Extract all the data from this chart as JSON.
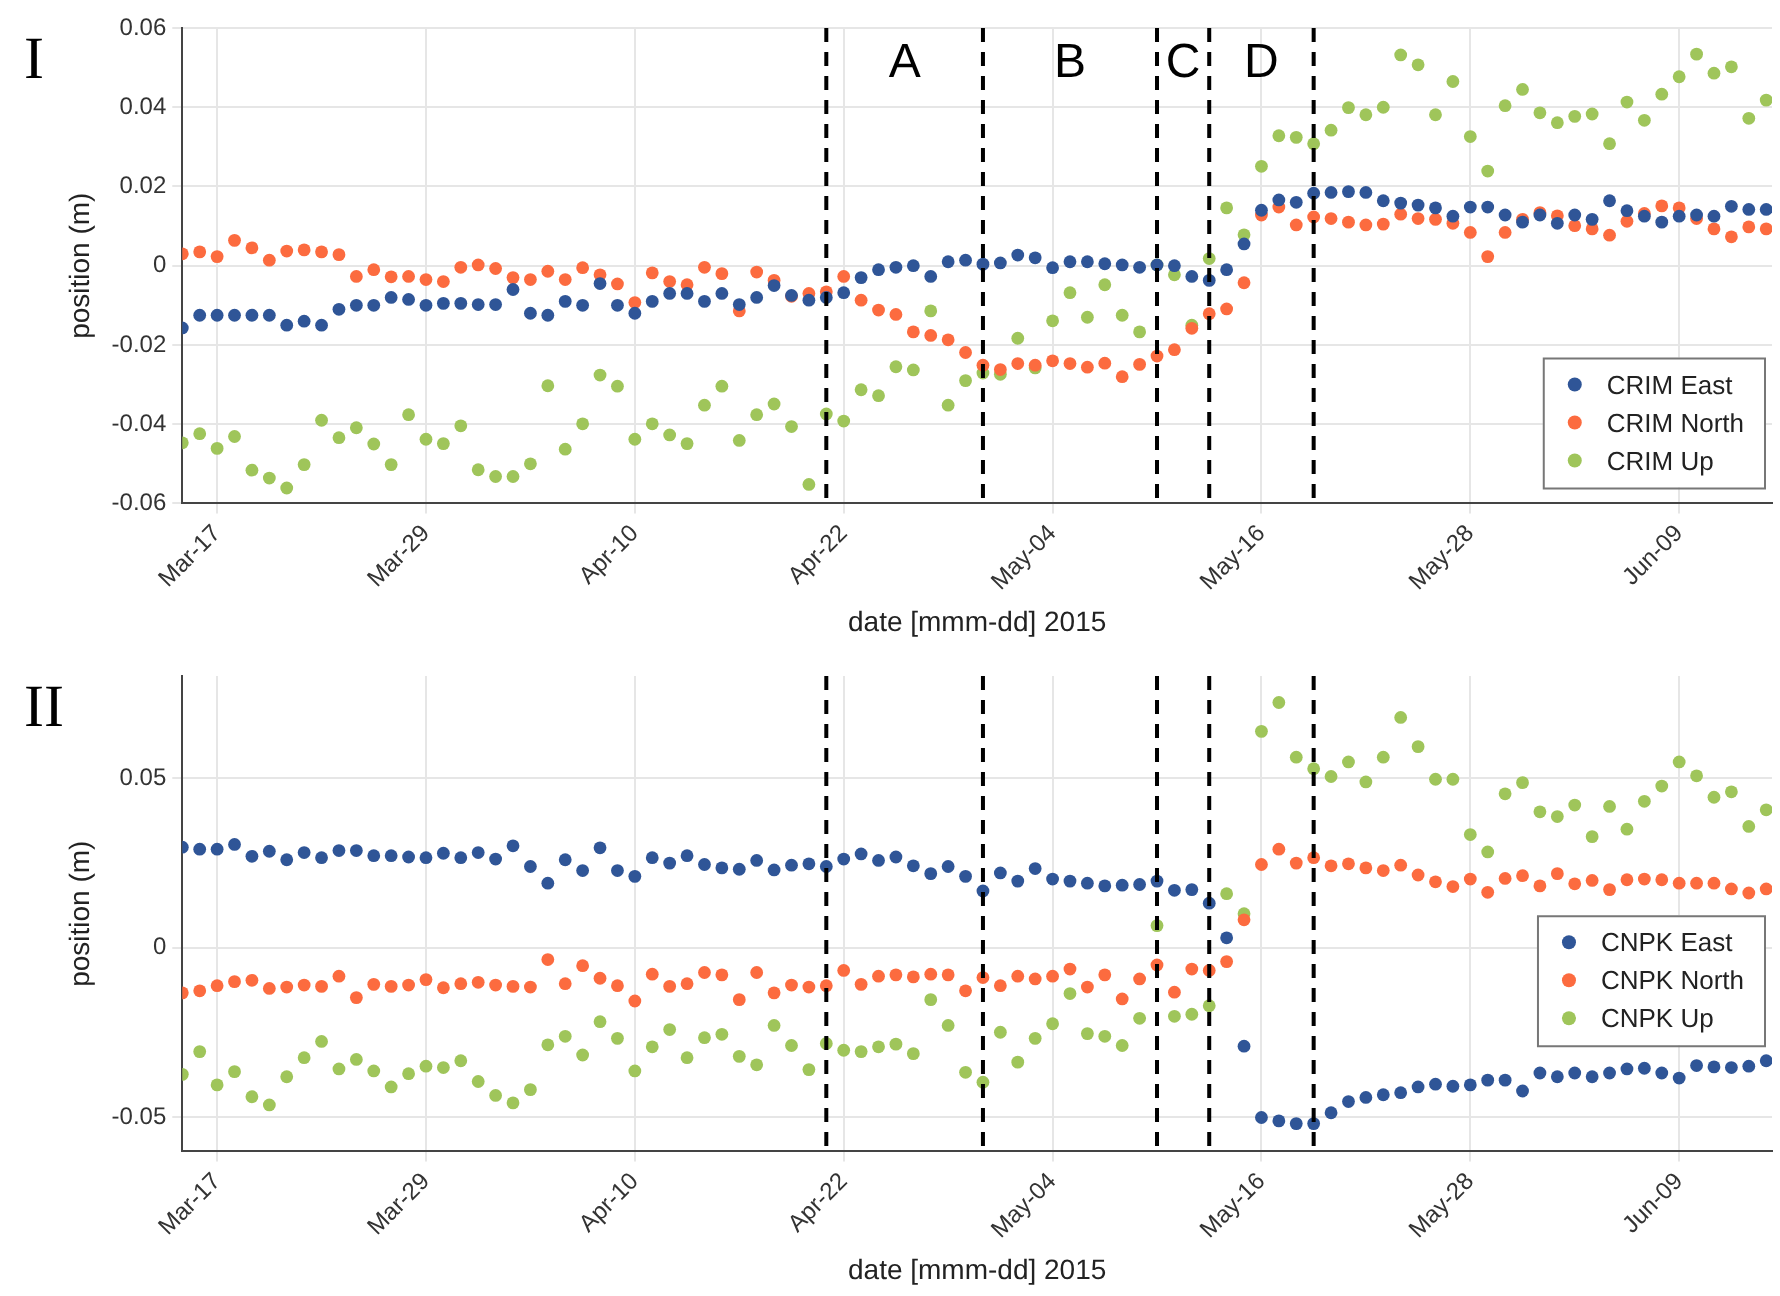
{
  "chart_data": [
    {
      "type": "scatter",
      "title": "I",
      "xlabel": "date [mmm-dd] 2015",
      "ylabel": "position (m)",
      "marker": "circle",
      "grid": true,
      "legend": "bottom right",
      "xlim": [
        "2015-03-15",
        "2015-06-14T08:00"
      ],
      "xticks": [
        {
          "value": "2015-03-17",
          "label": "Mar-17"
        },
        {
          "value": "2015-03-29",
          "label": "Mar-29"
        },
        {
          "value": "2015-04-10",
          "label": "Apr-10"
        },
        {
          "value": "2015-04-22",
          "label": "Apr-22"
        },
        {
          "value": "2015-05-04",
          "label": "May-04"
        },
        {
          "value": "2015-05-16",
          "label": "May-16"
        },
        {
          "value": "2015-05-28",
          "label": "May-28"
        },
        {
          "value": "2015-06-09",
          "label": "Jun-09"
        }
      ],
      "ylim": [
        -0.06,
        0.06
      ],
      "yticks": [
        -0.06,
        -0.04,
        -0.02,
        0,
        0.02,
        0.04,
        0.06
      ],
      "ref_lines": [
        {
          "axis": "x",
          "value": "2015-04-21",
          "color": "#000000",
          "line_style": "dashed"
        },
        {
          "axis": "x",
          "value": "2015-04-30",
          "color": "#000000",
          "line_style": "dashed"
        },
        {
          "axis": "x",
          "value": "2015-05-10",
          "color": "#000000",
          "line_style": "dashed"
        },
        {
          "axis": "x",
          "value": "2015-05-13",
          "color": "#000000",
          "line_style": "dashed"
        },
        {
          "axis": "x",
          "value": "2015-05-19",
          "color": "#000000",
          "line_style": "dashed"
        }
      ],
      "annotations": [
        "A",
        "B",
        "C",
        "D"
      ],
      "x": [
        "2015-03-15",
        "2015-03-16",
        "2015-03-17",
        "2015-03-18",
        "2015-03-19",
        "2015-03-20",
        "2015-03-21",
        "2015-03-22",
        "2015-03-23",
        "2015-03-24",
        "2015-03-25",
        "2015-03-26",
        "2015-03-27",
        "2015-03-28",
        "2015-03-29",
        "2015-03-30",
        "2015-03-31",
        "2015-04-01",
        "2015-04-02",
        "2015-04-03",
        "2015-04-04",
        "2015-04-05",
        "2015-04-06",
        "2015-04-07",
        "2015-04-08",
        "2015-04-09",
        "2015-04-10",
        "2015-04-11",
        "2015-04-12",
        "2015-04-13",
        "2015-04-14",
        "2015-04-15",
        "2015-04-16",
        "2015-04-17",
        "2015-04-18",
        "2015-04-19",
        "2015-04-20",
        "2015-04-21",
        "2015-04-22",
        "2015-04-23",
        "2015-04-24",
        "2015-04-25",
        "2015-04-26",
        "2015-04-27",
        "2015-04-28",
        "2015-04-29",
        "2015-04-30",
        "2015-05-01",
        "2015-05-02",
        "2015-05-03",
        "2015-05-04",
        "2015-05-05",
        "2015-05-06",
        "2015-05-07",
        "2015-05-08",
        "2015-05-09",
        "2015-05-10",
        "2015-05-11",
        "2015-05-12",
        "2015-05-13",
        "2015-05-14",
        "2015-05-15",
        "2015-05-16",
        "2015-05-17",
        "2015-05-18",
        "2015-05-19",
        "2015-05-20",
        "2015-05-21",
        "2015-05-22",
        "2015-05-23",
        "2015-05-24",
        "2015-05-25",
        "2015-05-26",
        "2015-05-27",
        "2015-05-28",
        "2015-05-29",
        "2015-05-30",
        "2015-05-31",
        "2015-06-01",
        "2015-06-02",
        "2015-06-03",
        "2015-06-04",
        "2015-06-05",
        "2015-06-06",
        "2015-06-07",
        "2015-06-08",
        "2015-06-09",
        "2015-06-10",
        "2015-06-11",
        "2015-06-12",
        "2015-06-13",
        "2015-06-14"
      ],
      "series": [
        {
          "name": "CRIM East",
          "color": "#2f5597",
          "values": [
            -0.0157,
            -0.0125,
            -0.0125,
            -0.0125,
            -0.0125,
            -0.0125,
            -0.015,
            -0.014,
            -0.015,
            -0.011,
            -0.01,
            -0.01,
            -0.008,
            -0.0085,
            -0.01,
            -0.0095,
            -0.0095,
            -0.0098,
            -0.0098,
            -0.006,
            -0.012,
            -0.0125,
            -0.009,
            -0.01,
            -0.0045,
            -0.01,
            -0.012,
            -0.009,
            -0.007,
            -0.007,
            -0.009,
            -0.007,
            -0.0098,
            -0.008,
            -0.005,
            -0.0075,
            -0.0087,
            -0.008,
            -0.0068,
            -0.003,
            -0.001,
            -0.0004,
            0,
            -0.0027,
            0.001,
            0.0014,
            0.0004,
            0.0007,
            0.0027,
            0.002,
            -0.0005,
            0.001,
            0.001,
            0.0005,
            0.0002,
            -0.0004,
            0.0002,
            0,
            -0.0027,
            -0.0037,
            -0.001,
            0.0055,
            0.014,
            0.0166,
            0.016,
            0.0183,
            0.0185,
            0.0187,
            0.0185,
            0.0164,
            0.0158,
            0.0153,
            0.0146,
            0.0125,
            0.0148,
            0.0148,
            0.0128,
            0.011,
            0.0128,
            0.0107,
            0.0128,
            0.0117,
            0.0164,
            0.0139,
            0.0125,
            0.011,
            0.0125,
            0.0128,
            0.0125,
            0.015,
            0.0142,
            0.0142
          ]
        },
        {
          "name": "CRIM North",
          "color": "#fc6b3f",
          "values": [
            0.003,
            0.0035,
            0.0023,
            0.0064,
            0.0045,
            0.0014,
            0.0037,
            0.004,
            0.0035,
            0.0028,
            -0.0027,
            -0.001,
            -0.0028,
            -0.0027,
            -0.0035,
            -0.004,
            -0.0004,
            0.0002,
            -0.0007,
            -0.003,
            -0.0035,
            -0.0014,
            -0.0035,
            -0.0005,
            -0.0023,
            -0.0046,
            -0.0093,
            -0.0018,
            -0.004,
            -0.0048,
            -0.0004,
            -0.002,
            -0.0114,
            -0.0016,
            -0.0037,
            -0.0077,
            -0.007,
            -0.0066,
            -0.0027,
            -0.0087,
            -0.0112,
            -0.0123,
            -0.0167,
            -0.0176,
            -0.0187,
            -0.0219,
            -0.0251,
            -0.0262,
            -0.0247,
            -0.0251,
            -0.024,
            -0.0247,
            -0.0256,
            -0.0246,
            -0.028,
            -0.0249,
            -0.0228,
            -0.0212,
            -0.0158,
            -0.0121,
            -0.0109,
            -0.0043,
            0.0128,
            0.0148,
            0.0103,
            0.0123,
            0.0119,
            0.011,
            0.0103,
            0.0105,
            0.013,
            0.0119,
            0.0117,
            0.0107,
            0.0084,
            0.0023,
            0.0084,
            0.0117,
            0.0134,
            0.0126,
            0.0101,
            0.0093,
            0.0077,
            0.0112,
            0.0132,
            0.0151,
            0.0146,
            0.0119,
            0.0093,
            0.0073,
            0.0098,
            0.0093
          ]
        },
        {
          "name": "CRIM Up",
          "color": "#9fc55a",
          "values": [
            -0.0447,
            -0.0424,
            -0.0461,
            -0.0431,
            -0.0516,
            -0.0536,
            -0.0561,
            -0.0502,
            -0.039,
            -0.0434,
            -0.0409,
            -0.045,
            -0.0502,
            -0.0376,
            -0.0438,
            -0.0449,
            -0.0404,
            -0.0515,
            -0.0532,
            -0.0532,
            -0.05,
            -0.0303,
            -0.0463,
            -0.0399,
            -0.0276,
            -0.0304,
            -0.0438,
            -0.0399,
            -0.0427,
            -0.0449,
            -0.0352,
            -0.0304,
            -0.0441,
            -0.0376,
            -0.0349,
            -0.0406,
            -0.0552,
            -0.0374,
            -0.0392,
            -0.0313,
            -0.0328,
            -0.0255,
            -0.0263,
            -0.0114,
            -0.0352,
            -0.029,
            -0.0271,
            -0.0274,
            -0.0183,
            -0.0258,
            -0.0139,
            -0.0068,
            -0.013,
            -0.0048,
            -0.0125,
            -0.0167,
            0.0002,
            -0.0023,
            -0.015,
            0.0018,
            0.0146,
            0.0078,
            0.0251,
            0.0328,
            0.0324,
            0.0308,
            0.0342,
            0.0399,
            0.0381,
            0.04,
            0.0532,
            0.0507,
            0.0381,
            0.0465,
            0.0326,
            0.0239,
            0.0404,
            0.0445,
            0.0386,
            0.0361,
            0.0377,
            0.0383,
            0.0308,
            0.0413,
            0.0367,
            0.0433,
            0.0477,
            0.0534,
            0.0486,
            0.0502,
            0.0372,
            0.0418
          ]
        }
      ]
    },
    {
      "type": "scatter",
      "title": "II",
      "xlabel": "date [mmm-dd] 2015",
      "ylabel": "position (m)",
      "marker": "circle",
      "grid": true,
      "legend": "right",
      "xlim": [
        "2015-03-15",
        "2015-06-14T08:00"
      ],
      "xticks": [
        {
          "value": "2015-03-17",
          "label": "Mar-17"
        },
        {
          "value": "2015-03-29",
          "label": "Mar-29"
        },
        {
          "value": "2015-04-10",
          "label": "Apr-10"
        },
        {
          "value": "2015-04-22",
          "label": "Apr-22"
        },
        {
          "value": "2015-05-04",
          "label": "May-04"
        },
        {
          "value": "2015-05-16",
          "label": "May-16"
        },
        {
          "value": "2015-05-28",
          "label": "May-28"
        },
        {
          "value": "2015-06-09",
          "label": "Jun-09"
        }
      ],
      "ylim": [
        -0.06,
        0.08
      ],
      "yticks": [
        -0.05,
        0,
        0.05
      ],
      "ref_lines": [
        {
          "axis": "x",
          "value": "2015-04-21",
          "color": "#000000",
          "line_style": "dashed"
        },
        {
          "axis": "x",
          "value": "2015-04-30",
          "color": "#000000",
          "line_style": "dashed"
        },
        {
          "axis": "x",
          "value": "2015-05-10",
          "color": "#000000",
          "line_style": "dashed"
        },
        {
          "axis": "x",
          "value": "2015-05-13",
          "color": "#000000",
          "line_style": "dashed"
        },
        {
          "axis": "x",
          "value": "2015-05-19",
          "color": "#000000",
          "line_style": "dashed"
        }
      ],
      "x": [
        "2015-03-15",
        "2015-03-16",
        "2015-03-17",
        "2015-03-18",
        "2015-03-19",
        "2015-03-20",
        "2015-03-21",
        "2015-03-22",
        "2015-03-23",
        "2015-03-24",
        "2015-03-25",
        "2015-03-26",
        "2015-03-27",
        "2015-03-28",
        "2015-03-29",
        "2015-03-30",
        "2015-03-31",
        "2015-04-01",
        "2015-04-02",
        "2015-04-03",
        "2015-04-04",
        "2015-04-05",
        "2015-04-06",
        "2015-04-07",
        "2015-04-08",
        "2015-04-09",
        "2015-04-10",
        "2015-04-11",
        "2015-04-12",
        "2015-04-13",
        "2015-04-14",
        "2015-04-15",
        "2015-04-16",
        "2015-04-17",
        "2015-04-18",
        "2015-04-19",
        "2015-04-20",
        "2015-04-21",
        "2015-04-22",
        "2015-04-23",
        "2015-04-24",
        "2015-04-25",
        "2015-04-26",
        "2015-04-27",
        "2015-04-28",
        "2015-04-29",
        "2015-04-30",
        "2015-05-01",
        "2015-05-02",
        "2015-05-03",
        "2015-05-04",
        "2015-05-05",
        "2015-05-06",
        "2015-05-07",
        "2015-05-08",
        "2015-05-09",
        "2015-05-10",
        "2015-05-11",
        "2015-05-12",
        "2015-05-13",
        "2015-05-14",
        "2015-05-15",
        "2015-05-16",
        "2015-05-17",
        "2015-05-18",
        "2015-05-19",
        "2015-05-20",
        "2015-05-21",
        "2015-05-22",
        "2015-05-23",
        "2015-05-24",
        "2015-05-25",
        "2015-05-26",
        "2015-05-27",
        "2015-05-28",
        "2015-05-29",
        "2015-05-30",
        "2015-05-31",
        "2015-06-01",
        "2015-06-02",
        "2015-06-03",
        "2015-06-04",
        "2015-06-05",
        "2015-06-06",
        "2015-06-07",
        "2015-06-08",
        "2015-06-09",
        "2015-06-10",
        "2015-06-11",
        "2015-06-12",
        "2015-06-13",
        "2015-06-14"
      ],
      "series": [
        {
          "name": "CNPK East",
          "color": "#2f5597",
          "values": [
            0.0296,
            0.029,
            0.029,
            0.0304,
            0.0269,
            0.0284,
            0.0259,
            0.028,
            0.0265,
            0.0286,
            0.0286,
            0.0271,
            0.0271,
            0.0267,
            0.0265,
            0.0278,
            0.0265,
            0.028,
            0.0261,
            0.03,
            0.0239,
            0.019,
            0.0259,
            0.0227,
            0.0294,
            0.0227,
            0.021,
            0.0265,
            0.0249,
            0.0271,
            0.0245,
            0.0235,
            0.0231,
            0.0257,
            0.0229,
            0.0243,
            0.0247,
            0.0239,
            0.0261,
            0.0276,
            0.0257,
            0.0267,
            0.0241,
            0.0218,
            0.0239,
            0.021,
            0.0167,
            0.022,
            0.0196,
            0.0233,
            0.0202,
            0.0196,
            0.019,
            0.0182,
            0.0184,
            0.0186,
            0.0196,
            0.0169,
            0.0171,
            0.0131,
            0.0029,
            -0.029,
            -0.05,
            -0.051,
            -0.0518,
            -0.0518,
            -0.0486,
            -0.0453,
            -0.0441,
            -0.0433,
            -0.0427,
            -0.041,
            -0.0402,
            -0.0408,
            -0.0404,
            -0.039,
            -0.039,
            -0.0422,
            -0.0369,
            -0.038,
            -0.0369,
            -0.038,
            -0.0369,
            -0.0357,
            -0.0355,
            -0.0369,
            -0.0384,
            -0.0347,
            -0.0351,
            -0.0353,
            -0.0349,
            -0.0333
          ]
        },
        {
          "name": "CNPK North",
          "color": "#fc6b3f",
          "values": [
            -0.0133,
            -0.0127,
            -0.0112,
            -0.01,
            -0.0096,
            -0.012,
            -0.0116,
            -0.011,
            -0.0114,
            -0.0084,
            -0.0147,
            -0.0108,
            -0.0114,
            -0.011,
            -0.0094,
            -0.0118,
            -0.0106,
            -0.0102,
            -0.011,
            -0.0114,
            -0.0116,
            -0.0035,
            -0.0106,
            -0.0053,
            -0.009,
            -0.0112,
            -0.0157,
            -0.0078,
            -0.0114,
            -0.0106,
            -0.0073,
            -0.008,
            -0.0153,
            -0.0073,
            -0.0133,
            -0.011,
            -0.0116,
            -0.0112,
            -0.0067,
            -0.0108,
            -0.0084,
            -0.008,
            -0.0086,
            -0.0078,
            -0.008,
            -0.0127,
            -0.0088,
            -0.0112,
            -0.0084,
            -0.0092,
            -0.0084,
            -0.0063,
            -0.0116,
            -0.008,
            -0.0151,
            -0.0092,
            -0.0051,
            -0.0131,
            -0.0063,
            -0.0067,
            -0.0041,
            0.0082,
            0.0245,
            0.029,
            0.0249,
            0.0265,
            0.0241,
            0.0247,
            0.0235,
            0.0227,
            0.0243,
            0.0214,
            0.0194,
            0.018,
            0.0202,
            0.0163,
            0.0204,
            0.0212,
            0.0182,
            0.0218,
            0.0188,
            0.0198,
            0.0171,
            0.02,
            0.0202,
            0.02,
            0.019,
            0.019,
            0.019,
            0.0173,
            0.0161,
            0.0173
          ]
        },
        {
          "name": "CNPK Up",
          "color": "#9fc55a",
          "values": [
            -0.0373,
            -0.0306,
            -0.0404,
            -0.0365,
            -0.0439,
            -0.0463,
            -0.038,
            -0.0324,
            -0.0276,
            -0.0357,
            -0.0329,
            -0.0363,
            -0.041,
            -0.0371,
            -0.0349,
            -0.0353,
            -0.0333,
            -0.0394,
            -0.0435,
            -0.0457,
            -0.0418,
            -0.0286,
            -0.0261,
            -0.0316,
            -0.0218,
            -0.0267,
            -0.0363,
            -0.0292,
            -0.0241,
            -0.0324,
            -0.0265,
            -0.0255,
            -0.032,
            -0.0345,
            -0.0229,
            -0.0288,
            -0.0359,
            -0.0282,
            -0.0302,
            -0.0306,
            -0.0292,
            -0.0284,
            -0.0312,
            -0.0153,
            -0.0229,
            -0.0367,
            -0.0396,
            -0.0249,
            -0.0337,
            -0.0267,
            -0.0224,
            -0.0135,
            -0.0253,
            -0.0261,
            -0.0288,
            -0.0208,
            0.0065,
            -0.0202,
            -0.0196,
            -0.0171,
            0.0159,
            0.01,
            0.0637,
            0.0722,
            0.0561,
            0.0527,
            0.0504,
            0.0547,
            0.0488,
            0.0561,
            0.0678,
            0.0592,
            0.0496,
            0.0496,
            0.0333,
            0.0282,
            0.0453,
            0.0486,
            0.04,
            0.0386,
            0.042,
            0.0327,
            0.0416,
            0.0349,
            0.0431,
            0.0476,
            0.0547,
            0.0506,
            0.0443,
            0.0459,
            0.0357,
            0.0406
          ]
        }
      ]
    }
  ]
}
